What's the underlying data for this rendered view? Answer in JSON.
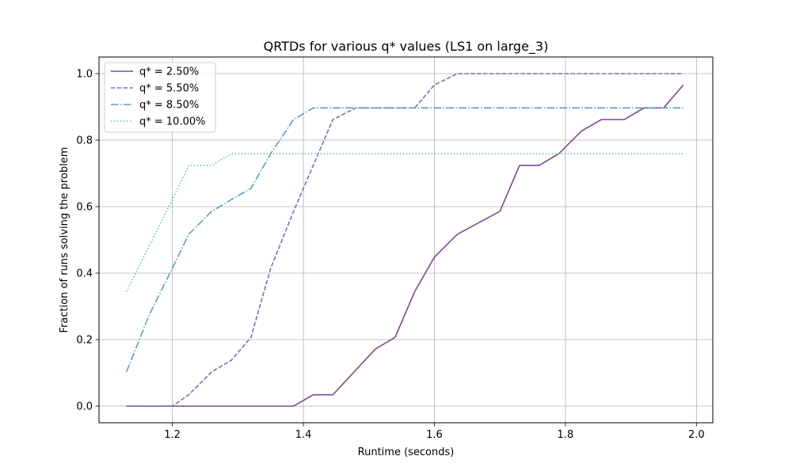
{
  "chart_data": {
    "type": "line",
    "title": "QRTDs for various q* values (LS1 on large_3)",
    "xlabel": "Runtime (seconds)",
    "ylabel": "Fraction of runs solving the problem",
    "xlim": [
      1.088,
      2.025
    ],
    "ylim": [
      -0.05,
      1.05
    ],
    "xticks": [
      1.2,
      1.4,
      1.6,
      1.8,
      2.0
    ],
    "xtick_labels": [
      "1.2",
      "1.4",
      "1.6",
      "1.8",
      "2.0"
    ],
    "yticks": [
      0.0,
      0.2,
      0.4,
      0.6,
      0.8,
      1.0
    ],
    "ytick_labels": [
      "0.0",
      "0.2",
      "0.4",
      "0.6",
      "0.8",
      "1.0"
    ],
    "grid": true,
    "legend_position": "upper-left",
    "series": [
      {
        "name": "q* = 2.50%",
        "color": "#7b4a8b",
        "linestyle": "solid",
        "x": [
          1.13,
          1.385,
          1.415,
          1.445,
          1.51,
          1.54,
          1.57,
          1.6,
          1.635,
          1.7,
          1.73,
          1.76,
          1.79,
          1.825,
          1.855,
          1.89,
          1.92,
          1.95,
          1.98
        ],
        "y": [
          0.0,
          0.0,
          0.034,
          0.034,
          0.172,
          0.207,
          0.345,
          0.448,
          0.517,
          0.586,
          0.724,
          0.724,
          0.759,
          0.828,
          0.862,
          0.862,
          0.897,
          0.897,
          0.966
        ]
      },
      {
        "name": "q* = 5.50%",
        "color": "#7a73ad",
        "linestyle": "dashed",
        "x": [
          1.13,
          1.2,
          1.225,
          1.26,
          1.29,
          1.32,
          1.35,
          1.385,
          1.415,
          1.445,
          1.48,
          1.51,
          1.57,
          1.6,
          1.635,
          1.98
        ],
        "y": [
          0.0,
          0.0,
          0.034,
          0.103,
          0.138,
          0.207,
          0.414,
          0.586,
          0.724,
          0.862,
          0.897,
          0.897,
          0.897,
          0.966,
          1.0,
          1.0
        ]
      },
      {
        "name": "q* = 8.50%",
        "color": "#5b9fb5",
        "linestyle": "dashdot",
        "x": [
          1.13,
          1.165,
          1.2,
          1.225,
          1.26,
          1.29,
          1.32,
          1.35,
          1.385,
          1.415,
          1.98
        ],
        "y": [
          0.103,
          0.276,
          0.414,
          0.517,
          0.586,
          0.621,
          0.655,
          0.759,
          0.862,
          0.897,
          0.897
        ]
      },
      {
        "name": "q* = 10.00%",
        "color": "#5dc5b0",
        "linestyle": "dotted",
        "x": [
          1.13,
          1.165,
          1.2,
          1.225,
          1.26,
          1.29,
          1.98
        ],
        "y": [
          0.345,
          0.483,
          0.621,
          0.724,
          0.724,
          0.759,
          0.759
        ]
      }
    ]
  }
}
